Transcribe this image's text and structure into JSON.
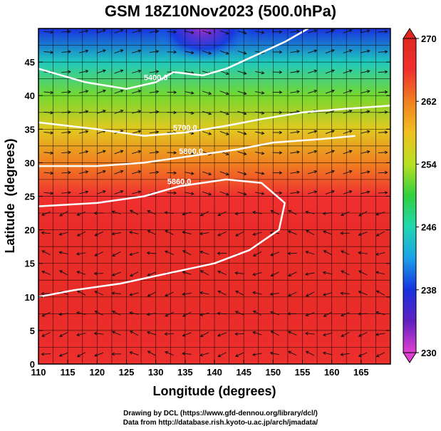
{
  "title": "GSM 18Z10Nov2023 (500.0hPa)",
  "credits": [
    "Drawing by DCL (https://www.gfd-dennou.org/library/dcl/)",
    "Data from http://database.rish.kyoto-u.ac.jp/arch/jmadata/"
  ],
  "chart_data": {
    "type": "heatmap",
    "title": "GSM 18Z10Nov2023 (500.0hPa)",
    "xlabel": "Longitude (degrees)",
    "ylabel": "Latitude  (degrees)",
    "xlim": [
      110,
      170
    ],
    "ylim": [
      0,
      50
    ],
    "x_ticks": [
      "110",
      "115",
      "120",
      "125",
      "130",
      "135",
      "140",
      "145",
      "150",
      "155",
      "160",
      "165"
    ],
    "y_ticks": [
      "0",
      "5",
      "10",
      "15",
      "20",
      "25",
      "30",
      "35",
      "40",
      "45"
    ],
    "grid": true,
    "colorbar": {
      "min": 230,
      "max": 270,
      "ticks": [
        "230",
        "238",
        "246",
        "254",
        "262",
        "270"
      ],
      "colors": [
        "#e040d0",
        "#6020c0",
        "#1830e0",
        "#1aa0e8",
        "#20d8b0",
        "#30d040",
        "#b8e020",
        "#f0c020",
        "#f08020",
        "#f03030",
        "#e02820"
      ]
    },
    "temperature_field_lat_profile": [
      {
        "lat": 0,
        "value": 267
      },
      {
        "lat": 10,
        "value": 268
      },
      {
        "lat": 20,
        "value": 268
      },
      {
        "lat": 25,
        "value": 266
      },
      {
        "lat": 30,
        "value": 262
      },
      {
        "lat": 35,
        "value": 257
      },
      {
        "lat": 40,
        "value": 252
      },
      {
        "lat": 45,
        "value": 245
      },
      {
        "lat": 50,
        "value": 238
      }
    ],
    "contours": [
      {
        "label": "5400.0",
        "points": [
          [
            110,
            44
          ],
          [
            118,
            42
          ],
          [
            125,
            41
          ],
          [
            130,
            42
          ],
          [
            133,
            43.5
          ],
          [
            138,
            43
          ],
          [
            142,
            44
          ],
          [
            147,
            46
          ],
          [
            152,
            48
          ],
          [
            156,
            50
          ]
        ]
      },
      {
        "label": "5700.0",
        "points": [
          [
            110,
            36
          ],
          [
            120,
            35
          ],
          [
            128,
            34
          ],
          [
            135,
            34.5
          ],
          [
            142,
            35.5
          ],
          [
            148,
            36.5
          ],
          [
            155,
            37.5
          ],
          [
            162,
            38
          ],
          [
            170,
            38.5
          ]
        ]
      },
      {
        "label": "5800.0",
        "points": [
          [
            110,
            29.5
          ],
          [
            120,
            29.5
          ],
          [
            128,
            30
          ],
          [
            136,
            31
          ],
          [
            144,
            32
          ],
          [
            150,
            33
          ],
          [
            158,
            33.5
          ],
          [
            164,
            34
          ]
        ]
      },
      {
        "label": "5860.0",
        "points": [
          [
            110,
            23.5
          ],
          [
            120,
            24
          ],
          [
            128,
            25
          ],
          [
            134,
            26.5
          ],
          [
            142,
            27.5
          ],
          [
            148,
            27
          ],
          [
            152,
            24
          ],
          [
            151,
            20
          ],
          [
            146,
            17
          ],
          [
            140,
            15
          ],
          [
            132,
            13.5
          ],
          [
            124,
            12
          ],
          [
            116,
            11
          ],
          [
            110,
            10
          ]
        ]
      }
    ],
    "lows": [
      {
        "lon": 138,
        "lat": 50,
        "value": 232
      }
    ]
  }
}
